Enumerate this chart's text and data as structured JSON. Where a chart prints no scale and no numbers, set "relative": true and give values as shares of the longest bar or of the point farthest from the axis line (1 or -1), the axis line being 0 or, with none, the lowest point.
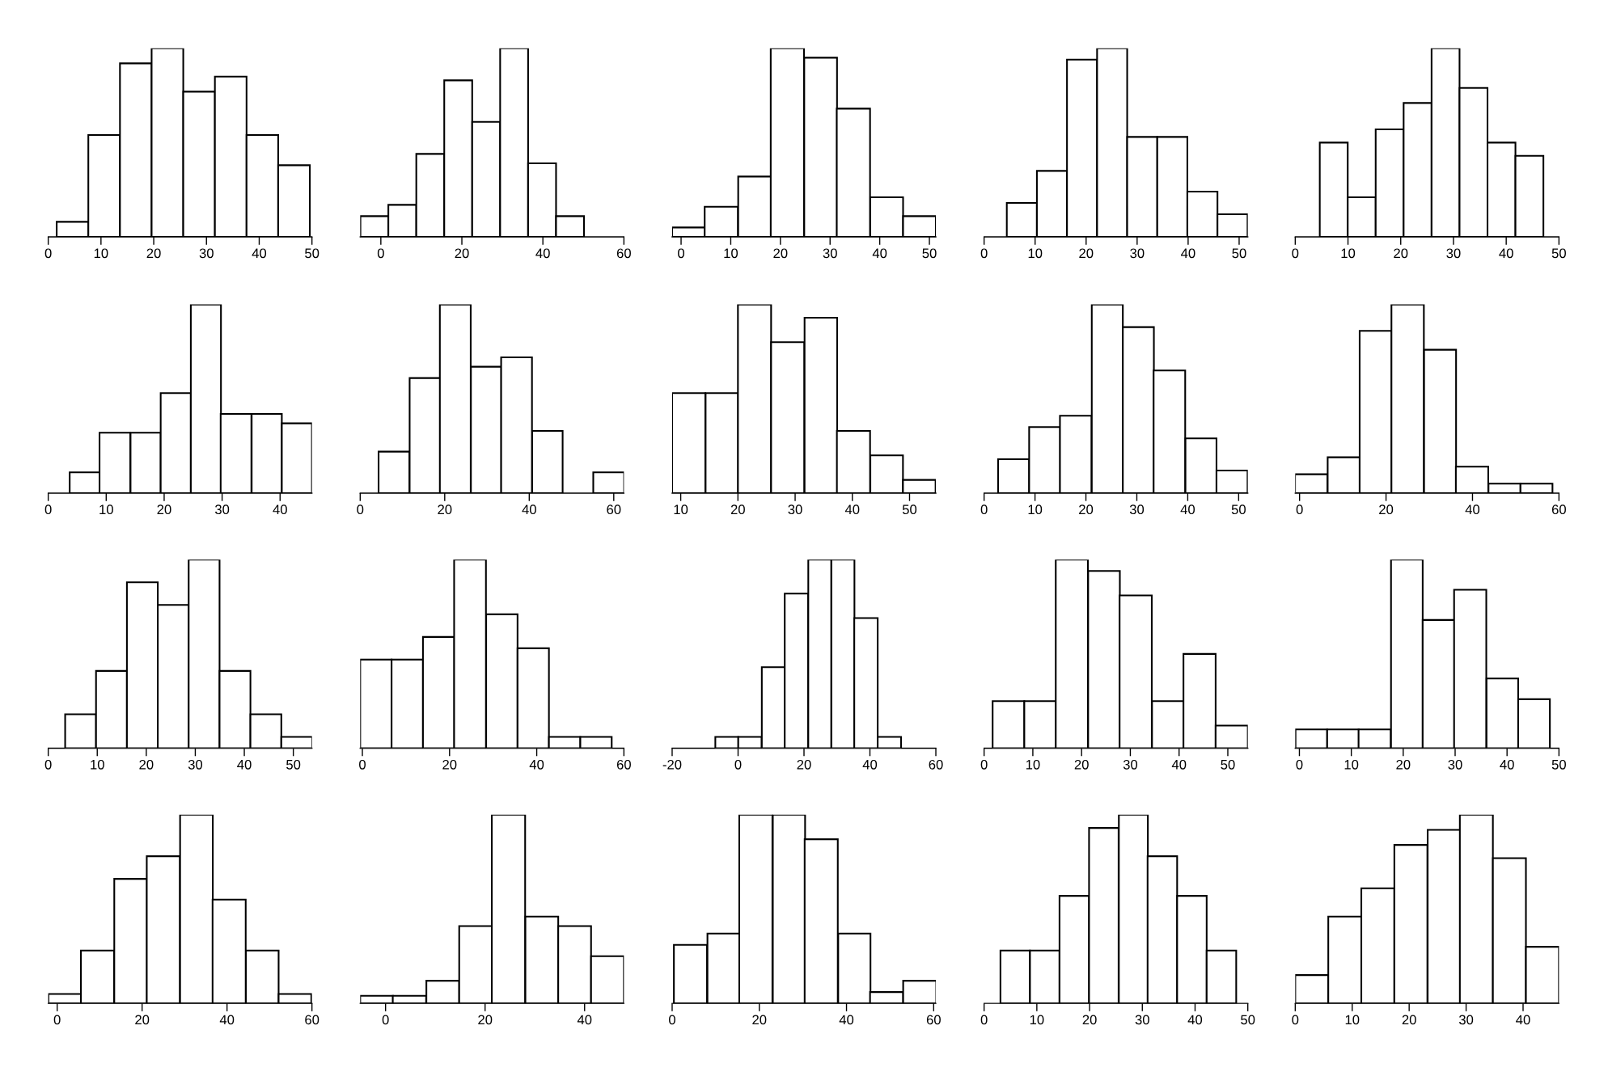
{
  "chart_data": [
    {
      "type": "bar",
      "relative": true,
      "color": "#ffffff",
      "x": [
        4.6,
        10.6,
        16.6,
        22.6,
        28.6,
        34.6,
        40.6,
        46.6
      ],
      "values": [
        0.08,
        0.54,
        0.92,
        1,
        0.77,
        0.85,
        0.54,
        0.38
      ],
      "xlim": [
        0,
        50
      ],
      "xticks": [
        0,
        10,
        20,
        30,
        40,
        50
      ]
    },
    {
      "type": "bar",
      "relative": true,
      "color": "#ffffff",
      "x": [
        -1.6,
        5.3,
        12.2,
        19.1,
        26.0,
        32.9,
        39.8,
        46.7
      ],
      "values": [
        0.11,
        0.17,
        0.44,
        0.83,
        0.61,
        1,
        0.39,
        0.11
      ],
      "xlim": [
        -5.1,
        60
      ],
      "xticks": [
        0,
        20,
        40,
        60
      ]
    },
    {
      "type": "bar",
      "relative": true,
      "color": "#ffffff",
      "x": [
        1.5,
        8.1,
        14.8,
        21.4,
        28.1,
        34.7,
        41.4,
        48.0
      ],
      "values": [
        0.05,
        0.16,
        0.32,
        1,
        0.95,
        0.68,
        0.21,
        0.11
      ],
      "xlim": [
        -1.8,
        51.3
      ],
      "xticks": [
        0,
        10,
        20,
        30,
        40,
        50
      ]
    },
    {
      "type": "bar",
      "relative": true,
      "color": "#ffffff",
      "x": [
        7.4,
        13.3,
        19.2,
        25.1,
        31.0,
        36.9,
        42.8,
        48.7
      ],
      "values": [
        0.18,
        0.35,
        0.94,
        1,
        0.53,
        0.53,
        0.24,
        0.12
      ],
      "xlim": [
        0,
        51.7
      ],
      "xticks": [
        0,
        10,
        20,
        30,
        40,
        50
      ]
    },
    {
      "type": "bar",
      "relative": true,
      "color": "#ffffff",
      "x": [
        7.3,
        12.6,
        17.9,
        23.2,
        28.5,
        33.8,
        39.1,
        44.4
      ],
      "values": [
        0.5,
        0.21,
        0.57,
        0.71,
        1,
        0.79,
        0.5,
        0.43
      ],
      "xlim": [
        0,
        50
      ],
      "xticks": [
        0,
        10,
        20,
        30,
        40,
        50
      ]
    },
    {
      "type": "bar",
      "relative": true,
      "color": "#ffffff",
      "x": [
        6.3,
        11.5,
        16.8,
        22.0,
        27.2,
        32.4,
        37.7,
        42.9
      ],
      "values": [
        0.11,
        0.32,
        0.32,
        0.53,
        1,
        0.42,
        0.42,
        0.37
      ],
      "xlim": [
        0,
        45.5
      ],
      "xticks": [
        0,
        10,
        20,
        30,
        40
      ]
    },
    {
      "type": "bar",
      "relative": true,
      "color": "#ffffff",
      "x": [
        8.0,
        15.3,
        22.5,
        29.8,
        37.0,
        44.3,
        51.5,
        58.8
      ],
      "values": [
        0.22,
        0.61,
        1,
        0.67,
        0.72,
        0.33,
        0,
        0.11
      ],
      "xlim": [
        0,
        62.4
      ],
      "xticks": [
        0,
        20,
        40,
        60
      ]
    },
    {
      "type": "bar",
      "relative": true,
      "color": "#ffffff",
      "x": [
        11.4,
        17.2,
        22.9,
        28.7,
        34.5,
        40.2,
        46.0,
        51.7
      ],
      "values": [
        0.53,
        0.53,
        1,
        0.8,
        0.93,
        0.33,
        0.2,
        0.07
      ],
      "xlim": [
        8.5,
        54.6
      ],
      "xticks": [
        10,
        20,
        30,
        40,
        50
      ]
    },
    {
      "type": "bar",
      "relative": true,
      "color": "#ffffff",
      "x": [
        5.8,
        11.9,
        18.0,
        24.2,
        30.3,
        36.4,
        42.6,
        48.7
      ],
      "values": [
        0.18,
        0.35,
        0.41,
        1,
        0.88,
        0.65,
        0.29,
        0.12
      ],
      "xlim": [
        0,
        51.8
      ],
      "xticks": [
        0,
        10,
        20,
        30,
        40,
        50
      ]
    },
    {
      "type": "bar",
      "relative": true,
      "color": "#ffffff",
      "x": [
        2.7,
        10.2,
        17.6,
        25.0,
        32.5,
        39.9,
        47.4,
        54.8
      ],
      "values": [
        0.1,
        0.19,
        0.86,
        1,
        0.76,
        0.14,
        0.05,
        0.05
      ],
      "xlim": [
        -1.0,
        60
      ],
      "xticks": [
        0,
        20,
        40,
        60
      ]
    },
    {
      "type": "bar",
      "relative": true,
      "color": "#ffffff",
      "x": [
        6.6,
        12.9,
        19.2,
        25.5,
        31.8,
        38.1,
        44.4,
        50.7
      ],
      "values": [
        0.18,
        0.41,
        0.88,
        0.76,
        1,
        0.41,
        0.18,
        0.06
      ],
      "xlim": [
        0,
        53.8
      ],
      "xticks": [
        0,
        10,
        20,
        30,
        40,
        50
      ]
    },
    {
      "type": "bar",
      "relative": true,
      "color": "#ffffff",
      "x": [
        3.1,
        10.3,
        17.5,
        24.7,
        32.0,
        39.2,
        46.4,
        53.6
      ],
      "values": [
        0.47,
        0.47,
        0.59,
        1,
        0.71,
        0.53,
        0.06,
        0.06
      ],
      "xlim": [
        -0.5,
        60
      ],
      "xticks": [
        0,
        20,
        40,
        60
      ]
    },
    {
      "type": "bar",
      "relative": true,
      "color": "#ffffff",
      "x": [
        -3.4,
        3.6,
        10.7,
        17.7,
        24.8,
        31.8,
        38.8,
        45.9
      ],
      "values": [
        0.06,
        0.06,
        0.43,
        0.82,
        1,
        1,
        0.69,
        0.06
      ],
      "xlim": [
        -20,
        60
      ],
      "xticks": [
        -20,
        0,
        20,
        40,
        60
      ]
    },
    {
      "type": "bar",
      "relative": true,
      "color": "#ffffff",
      "x": [
        5.0,
        11.5,
        18.0,
        24.6,
        31.1,
        37.7,
        44.2,
        50.8
      ],
      "values": [
        0.25,
        0.25,
        1,
        0.94,
        0.81,
        0.25,
        0.5,
        0.12
      ],
      "xlim": [
        0,
        54.1
      ],
      "xticks": [
        0,
        10,
        20,
        30,
        40,
        50
      ]
    },
    {
      "type": "bar",
      "relative": true,
      "color": "#ffffff",
      "x": [
        2.3,
        8.4,
        14.5,
        20.7,
        26.8,
        32.9,
        39.1,
        45.2
      ],
      "values": [
        0.1,
        0.1,
        0.1,
        1,
        0.68,
        0.84,
        0.37,
        0.26
      ],
      "xlim": [
        -0.8,
        50
      ],
      "xticks": [
        0,
        10,
        20,
        30,
        40,
        50
      ]
    },
    {
      "type": "bar",
      "relative": true,
      "color": "#ffffff",
      "x": [
        1.8,
        9.5,
        17.3,
        25.0,
        32.8,
        40.5,
        48.3,
        56.0
      ],
      "values": [
        0.05,
        0.28,
        0.66,
        0.78,
        1,
        0.55,
        0.28,
        0.05
      ],
      "xlim": [
        -2.1,
        60
      ],
      "xticks": [
        0,
        20,
        40,
        60
      ]
    },
    {
      "type": "bar",
      "relative": true,
      "color": "#ffffff",
      "x": [
        -1.8,
        4.8,
        11.5,
        18.1,
        24.7,
        31.4,
        38.0,
        44.6
      ],
      "values": [
        0.04,
        0.04,
        0.12,
        0.41,
        1,
        0.46,
        0.41,
        0.25
      ],
      "xlim": [
        -5.1,
        47.9
      ],
      "xticks": [
        0,
        20,
        40
      ]
    },
    {
      "type": "bar",
      "relative": true,
      "color": "#ffffff",
      "x": [
        4.2,
        11.8,
        19.2,
        26.8,
        34.2,
        41.8,
        49.2,
        56.8
      ],
      "values": [
        0.31,
        0.37,
        1,
        1,
        0.87,
        0.37,
        0.06,
        0.12
      ],
      "xlim": [
        0,
        60.5
      ],
      "xticks": [
        0,
        20,
        40,
        60
      ]
    },
    {
      "type": "bar",
      "relative": true,
      "color": "#ffffff",
      "x": [
        5.9,
        11.5,
        17.1,
        22.7,
        28.3,
        33.8,
        39.4,
        45.0
      ],
      "values": [
        0.28,
        0.28,
        0.57,
        0.93,
        1,
        0.78,
        0.57,
        0.28
      ],
      "xlim": [
        0,
        50
      ],
      "xticks": [
        0,
        10,
        20,
        30,
        40,
        50
      ]
    },
    {
      "type": "bar",
      "relative": true,
      "color": "#ffffff",
      "x": [
        2.9,
        8.7,
        14.5,
        20.3,
        26.1,
        31.8,
        37.6,
        43.4
      ],
      "values": [
        0.15,
        0.46,
        0.61,
        0.84,
        0.92,
        1,
        0.77,
        0.3
      ],
      "xlim": [
        0,
        46.3
      ],
      "xticks": [
        0,
        10,
        20,
        30,
        40
      ]
    }
  ]
}
